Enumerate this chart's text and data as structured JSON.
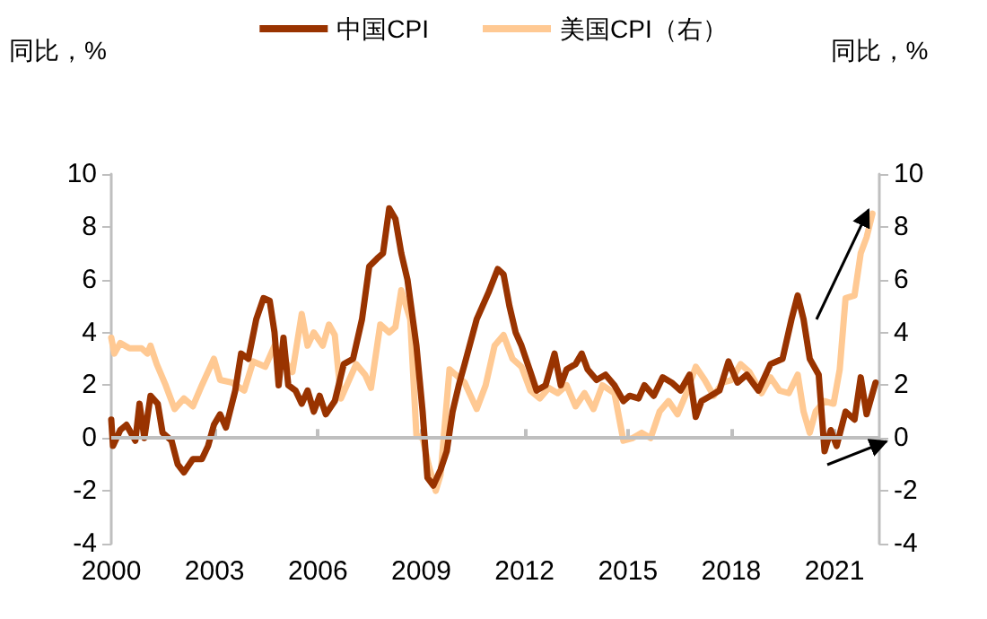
{
  "chart_data": {
    "type": "line",
    "ylabel": "同比，%",
    "y2label": "同比，%",
    "xlim": [
      2000,
      2022.3
    ],
    "xticks": [
      2000,
      2003,
      2006,
      2009,
      2012,
      2015,
      2018,
      2021
    ],
    "ylim": [
      -4,
      10
    ],
    "yticks": [
      -4,
      -2,
      0,
      2,
      4,
      6,
      8,
      10
    ],
    "y2lim": [
      -4,
      10
    ],
    "y2ticks": [
      -4,
      -2,
      0,
      2,
      4,
      6,
      8,
      10
    ],
    "legend": "top",
    "grid": false,
    "ref_lines": [
      {
        "axis": "y",
        "value": 0,
        "color": "#bfbfbf"
      }
    ],
    "marker": "none",
    "line_style": "solid",
    "series": [
      {
        "name": "中国CPI",
        "color": "#993300",
        "x": [
          2000.0,
          2000.05,
          2000.26,
          2000.44,
          2000.7,
          2000.82,
          2000.96,
          2001.14,
          2001.35,
          2001.49,
          2001.75,
          2001.93,
          2002.11,
          2002.37,
          2002.63,
          2002.81,
          2002.98,
          2003.16,
          2003.33,
          2003.6,
          2003.77,
          2003.98,
          2004.21,
          2004.42,
          2004.6,
          2004.74,
          2004.86,
          2005.0,
          2005.14,
          2005.35,
          2005.53,
          2005.7,
          2005.88,
          2006.05,
          2006.23,
          2006.49,
          2006.75,
          2007.02,
          2007.28,
          2007.49,
          2007.72,
          2007.89,
          2008.07,
          2008.25,
          2008.42,
          2008.6,
          2008.86,
          2009.04,
          2009.18,
          2009.35,
          2009.56,
          2009.74,
          2009.91,
          2010.09,
          2010.26,
          2010.61,
          2010.95,
          2011.22,
          2011.39,
          2011.56,
          2011.74,
          2011.91,
          2012.17,
          2012.35,
          2012.61,
          2012.87,
          2013.05,
          2013.22,
          2013.48,
          2013.66,
          2013.83,
          2014.09,
          2014.35,
          2014.61,
          2014.87,
          2015.05,
          2015.31,
          2015.48,
          2015.75,
          2016.01,
          2016.27,
          2016.53,
          2016.79,
          2016.97,
          2017.14,
          2017.4,
          2017.66,
          2017.92,
          2018.18,
          2018.45,
          2018.79,
          2019.14,
          2019.49,
          2019.75,
          2019.93,
          2020.1,
          2020.28,
          2020.54,
          2020.71,
          2020.89,
          2021.06,
          2021.32,
          2021.58,
          2021.76,
          2021.93,
          2022.19
        ],
        "values": [
          0.7,
          -0.3,
          0.3,
          0.5,
          -0.1,
          1.3,
          0,
          1.6,
          1.3,
          0.2,
          -0.1,
          -1.0,
          -1.3,
          -0.8,
          -0.8,
          -0.3,
          0.5,
          0.9,
          0.4,
          1.8,
          3.2,
          3.0,
          4.5,
          5.3,
          5.2,
          4.0,
          2.0,
          3.8,
          2.0,
          1.8,
          1.3,
          1.8,
          1.0,
          1.6,
          0.9,
          1.4,
          2.8,
          3.0,
          4.5,
          6.5,
          6.8,
          7.0,
          8.7,
          8.3,
          7.0,
          6.0,
          3.5,
          1.0,
          -1.5,
          -1.8,
          -1.2,
          -0.5,
          1.0,
          2.0,
          2.8,
          4.5,
          5.5,
          6.4,
          6.2,
          5.0,
          4.0,
          3.5,
          2.5,
          1.8,
          2.0,
          3.2,
          2.0,
          2.6,
          2.8,
          3.2,
          2.6,
          2.2,
          2.4,
          2.0,
          1.4,
          1.6,
          1.5,
          2.0,
          1.6,
          2.3,
          2.1,
          1.8,
          2.4,
          0.8,
          1.4,
          1.6,
          1.8,
          2.9,
          2.1,
          2.4,
          1.8,
          2.8,
          3.0,
          4.5,
          5.4,
          4.5,
          3.0,
          2.4,
          -0.5,
          0.3,
          -0.3,
          1.0,
          0.7,
          2.3,
          0.9,
          2.1
        ]
      },
      {
        "name": "美国CPI（右）",
        "color": "#ffc993",
        "axis": "y2",
        "x": [
          2000.0,
          2000.09,
          2000.26,
          2000.53,
          2000.88,
          2001.05,
          2001.14,
          2001.32,
          2001.58,
          2001.84,
          2002.11,
          2002.37,
          2002.63,
          2002.98,
          2003.16,
          2003.51,
          2003.86,
          2004.12,
          2004.47,
          2004.74,
          2005.0,
          2005.26,
          2005.53,
          2005.7,
          2005.88,
          2006.14,
          2006.32,
          2006.49,
          2006.67,
          2006.84,
          2007.11,
          2007.37,
          2007.54,
          2007.81,
          2008.07,
          2008.25,
          2008.42,
          2008.68,
          2008.86,
          2009.04,
          2009.21,
          2009.42,
          2009.56,
          2009.82,
          2010.0,
          2010.26,
          2010.61,
          2010.87,
          2011.13,
          2011.39,
          2011.65,
          2011.91,
          2012.17,
          2012.44,
          2012.7,
          2012.96,
          2013.22,
          2013.48,
          2013.74,
          2014.0,
          2014.26,
          2014.61,
          2014.87,
          2015.14,
          2015.4,
          2015.66,
          2015.92,
          2016.18,
          2016.44,
          2016.7,
          2016.97,
          2017.23,
          2017.49,
          2017.75,
          2018.01,
          2018.27,
          2018.53,
          2018.88,
          2019.14,
          2019.4,
          2019.67,
          2019.93,
          2020.1,
          2020.28,
          2020.45,
          2020.71,
          2020.97,
          2021.15,
          2021.32,
          2021.58,
          2021.76,
          2021.93,
          2022.1
        ],
        "values": [
          3.8,
          3.2,
          3.6,
          3.4,
          3.4,
          3.2,
          3.5,
          2.8,
          2.0,
          1.1,
          1.5,
          1.2,
          2.0,
          3.0,
          2.2,
          2.1,
          1.8,
          2.9,
          2.7,
          3.5,
          3.0,
          2.5,
          4.7,
          3.5,
          4.0,
          3.5,
          4.3,
          3.9,
          1.5,
          2.0,
          2.8,
          2.4,
          1.9,
          4.3,
          4.0,
          4.2,
          5.6,
          4.5,
          0.1,
          0.0,
          -1.0,
          -2.0,
          -1.4,
          2.6,
          2.4,
          2.1,
          1.1,
          2.0,
          3.5,
          3.9,
          3.0,
          2.7,
          1.8,
          1.5,
          1.9,
          1.7,
          2.0,
          1.2,
          1.7,
          1.1,
          2.0,
          1.7,
          -0.1,
          0.0,
          0.2,
          0.0,
          1.0,
          1.4,
          0.9,
          1.7,
          2.7,
          2.2,
          1.6,
          2.1,
          2.2,
          2.8,
          2.5,
          1.7,
          2.3,
          1.8,
          1.7,
          2.4,
          1.0,
          0.2,
          1.0,
          1.4,
          1.3,
          2.6,
          5.3,
          5.4,
          7.0,
          7.6,
          8.5
        ]
      }
    ]
  }
}
